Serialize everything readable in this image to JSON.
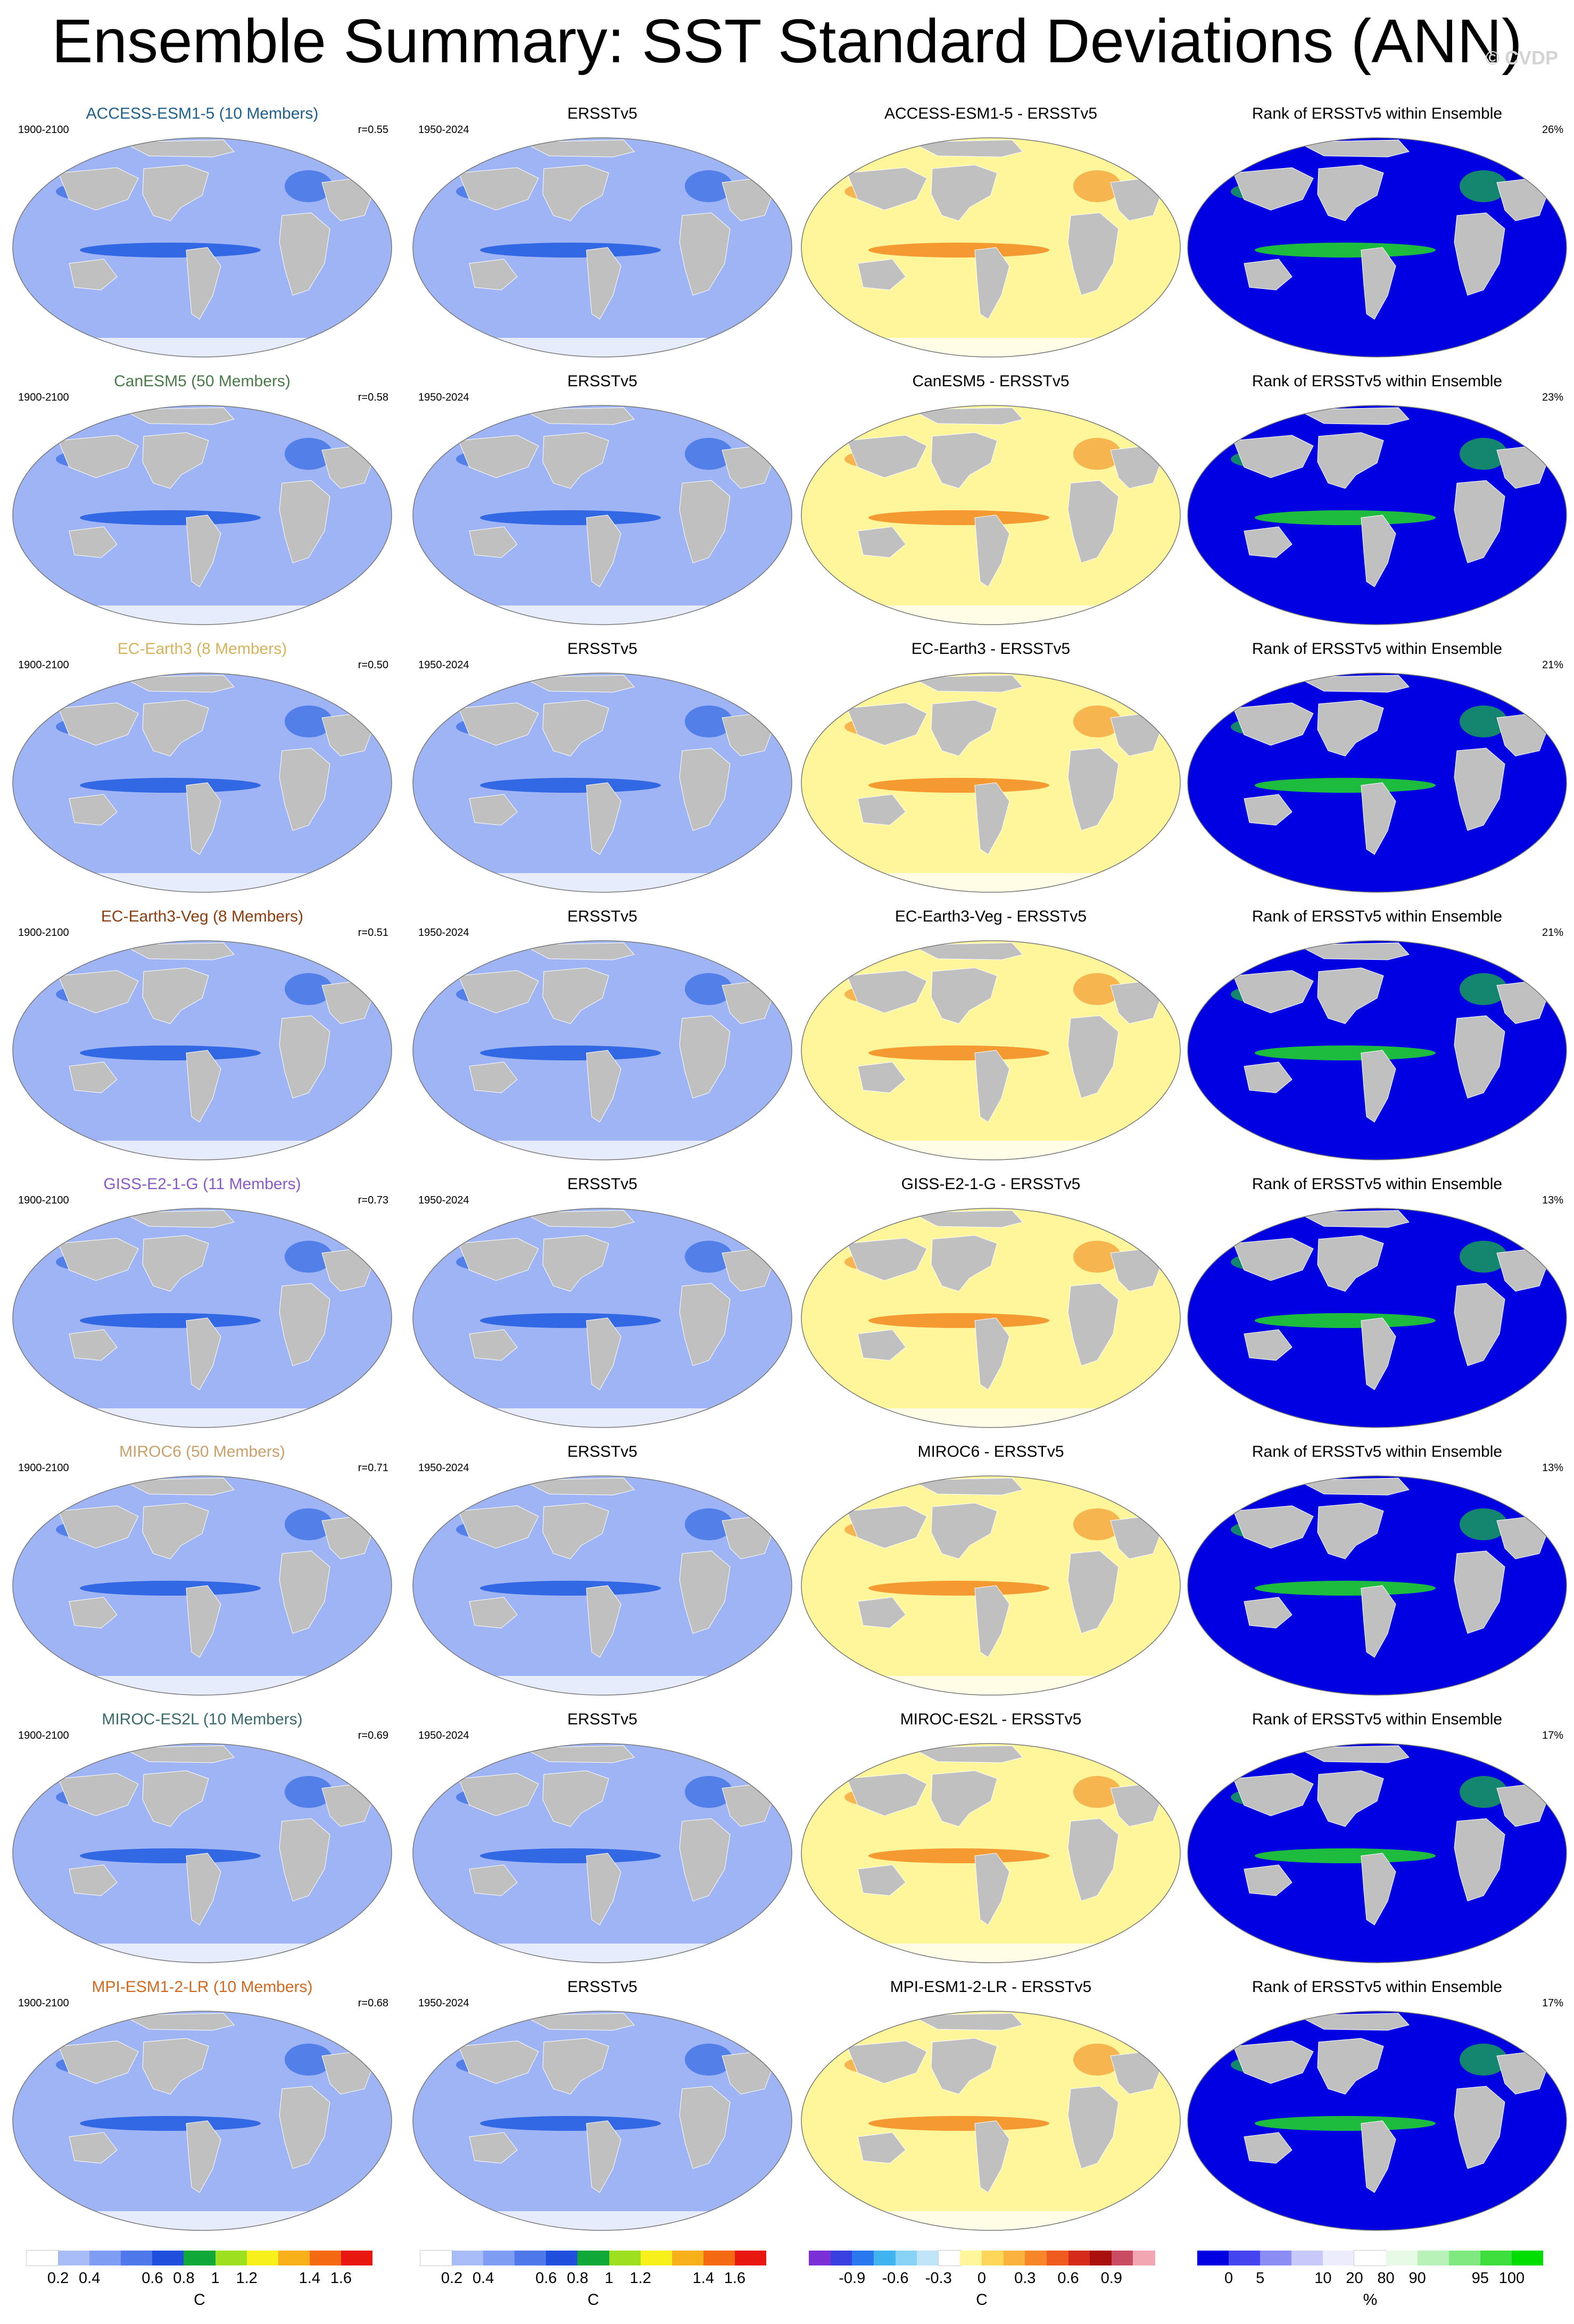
{
  "title": "Ensemble Summary: SST Standard Deviations (ANN)",
  "copyright": "© CVDP",
  "obs_title": "ERSSTv5",
  "obs_period": "1950-2024",
  "model_period": "1900-2100",
  "rank_title": "Rank of ERSSTv5 within Ensemble",
  "colors": {
    "land": "#c0c0c0",
    "ocean_base": "#9eb4f4",
    "pattern_strong": "#1f5be0",
    "diff_base": "#fff59a",
    "diff_strong": "#f28a1e",
    "rank_base": "#0000e0",
    "rank_high": "#22dd22"
  },
  "rows": [
    {
      "model": "ACCESS-ESM1-5 (10 Members)",
      "model_color": "#1f5f8b",
      "r": "r=0.55",
      "diff_title": "ACCESS-ESM1-5 - ERSSTv5",
      "rank_pct": "26%"
    },
    {
      "model": "CanESM5 (50 Members)",
      "model_color": "#4a7a4a",
      "r": "r=0.58",
      "diff_title": "CanESM5 - ERSSTv5",
      "rank_pct": "23%"
    },
    {
      "model": "EC-Earth3 (8 Members)",
      "model_color": "#d6b35a",
      "r": "r=0.50",
      "diff_title": "EC-Earth3 - ERSSTv5",
      "rank_pct": "21%"
    },
    {
      "model": "EC-Earth3-Veg (8 Members)",
      "model_color": "#8a3e10",
      "r": "r=0.51",
      "diff_title": "EC-Earth3-Veg - ERSSTv5",
      "rank_pct": "21%"
    },
    {
      "model": "GISS-E2-1-G (11 Members)",
      "model_color": "#8a5ac8",
      "r": "r=0.73",
      "diff_title": "GISS-E2-1-G - ERSSTv5",
      "rank_pct": "13%"
    },
    {
      "model": "MIROC6 (50 Members)",
      "model_color": "#c9a06a",
      "r": "r=0.71",
      "diff_title": "MIROC6 - ERSSTv5",
      "rank_pct": "13%"
    },
    {
      "model": "MIROC-ES2L (10 Members)",
      "model_color": "#3a6a6a",
      "r": "r=0.69",
      "diff_title": "MIROC-ES2L - ERSSTv5",
      "rank_pct": "17%"
    },
    {
      "model": "MPI-ESM1-2-LR (10 Members)",
      "model_color": "#d2691e",
      "r": "r=0.68",
      "diff_title": "MPI-ESM1-2-LR - ERSSTv5",
      "rank_pct": "17%"
    }
  ],
  "colorbars": [
    {
      "name": "sd-model",
      "colors": [
        "#ffffff",
        "#a8bcf7",
        "#7f9df2",
        "#4f78ea",
        "#1f4fdc",
        "#11a83a",
        "#9ee01e",
        "#f7f01a",
        "#f7b01a",
        "#f46a10",
        "#e8170f"
      ],
      "ticks": [
        "0.2",
        "0.4",
        "0.6",
        "0.8",
        "1",
        "1.2",
        "1.4",
        "1.6"
      ],
      "unit": "C"
    },
    {
      "name": "sd-obs",
      "colors": [
        "#ffffff",
        "#a8bcf7",
        "#7f9df2",
        "#4f78ea",
        "#1f4fdc",
        "#11a83a",
        "#9ee01e",
        "#f7f01a",
        "#f7b01a",
        "#f46a10",
        "#e8170f"
      ],
      "ticks": [
        "0.2",
        "0.4",
        "0.6",
        "0.8",
        "1",
        "1.2",
        "1.4",
        "1.6"
      ],
      "unit": "C"
    },
    {
      "name": "difference",
      "colors": [
        "#7b2fd6",
        "#3a3fe0",
        "#2a78f0",
        "#3fb4f0",
        "#86d3f5",
        "#bfe4f8",
        "#ffffff",
        "#fff59a",
        "#fdd65a",
        "#fbb33d",
        "#f7862a",
        "#ef5a1f",
        "#d62a1a",
        "#a8110e",
        "#c94c63",
        "#f2a6b4"
      ],
      "ticks": [
        "-0.9",
        "-0.6",
        "-0.3",
        "0",
        "0.3",
        "0.6",
        "0.9"
      ],
      "unit": "C"
    },
    {
      "name": "rank",
      "colors": [
        "#0000e0",
        "#4545f0",
        "#8c8cf5",
        "#c8c8fa",
        "#ececfc",
        "#ffffff",
        "#e6fae6",
        "#b8f2b8",
        "#7fe87f",
        "#3ddf3d",
        "#00dd00"
      ],
      "ticks": [
        "0",
        "5",
        "10",
        "20",
        "80",
        "90",
        "95",
        "100"
      ],
      "unit": "%"
    }
  ]
}
